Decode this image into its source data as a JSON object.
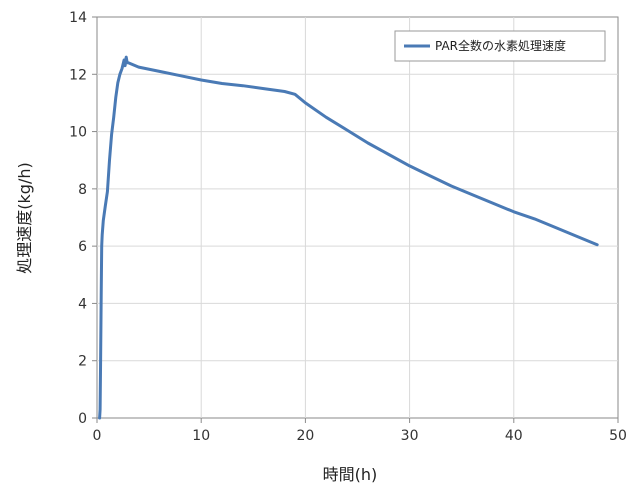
{
  "chart_data": {
    "type": "line",
    "title": "",
    "xlabel": "時間(h)",
    "ylabel": "処理速度(kg/h)",
    "xlim": [
      0,
      50
    ],
    "ylim": [
      0,
      14
    ],
    "x_ticks": [
      0,
      10,
      20,
      30,
      40,
      50
    ],
    "y_ticks": [
      0,
      2,
      4,
      6,
      8,
      10,
      12,
      14
    ],
    "grid": true,
    "legend_position": "top-right",
    "series": [
      {
        "name": "PAR全数の水素処理速度",
        "color": "#4a7ab5",
        "x": [
          0.25,
          0.3,
          0.35,
          0.4,
          0.45,
          0.5,
          0.6,
          0.8,
          1.0,
          1.2,
          1.4,
          1.6,
          1.8,
          2.0,
          2.2,
          2.4,
          2.6,
          2.7,
          2.8,
          2.9,
          3.0,
          4,
          6,
          8,
          10,
          12,
          14,
          16,
          18,
          19,
          20,
          22,
          24,
          26,
          28,
          30,
          32,
          34,
          36,
          38,
          40,
          42,
          44,
          46,
          48
        ],
        "y": [
          0,
          0.3,
          2.0,
          4.3,
          6.0,
          6.4,
          6.9,
          7.4,
          7.9,
          9.0,
          9.9,
          10.5,
          11.2,
          11.7,
          12.0,
          12.2,
          12.5,
          12.3,
          12.6,
          12.4,
          12.4,
          12.25,
          12.1,
          11.95,
          11.8,
          11.68,
          11.6,
          11.5,
          11.4,
          11.3,
          11.0,
          10.5,
          10.05,
          9.6,
          9.2,
          8.8,
          8.45,
          8.1,
          7.8,
          7.5,
          7.2,
          6.95,
          6.65,
          6.35,
          6.05
        ]
      }
    ]
  }
}
